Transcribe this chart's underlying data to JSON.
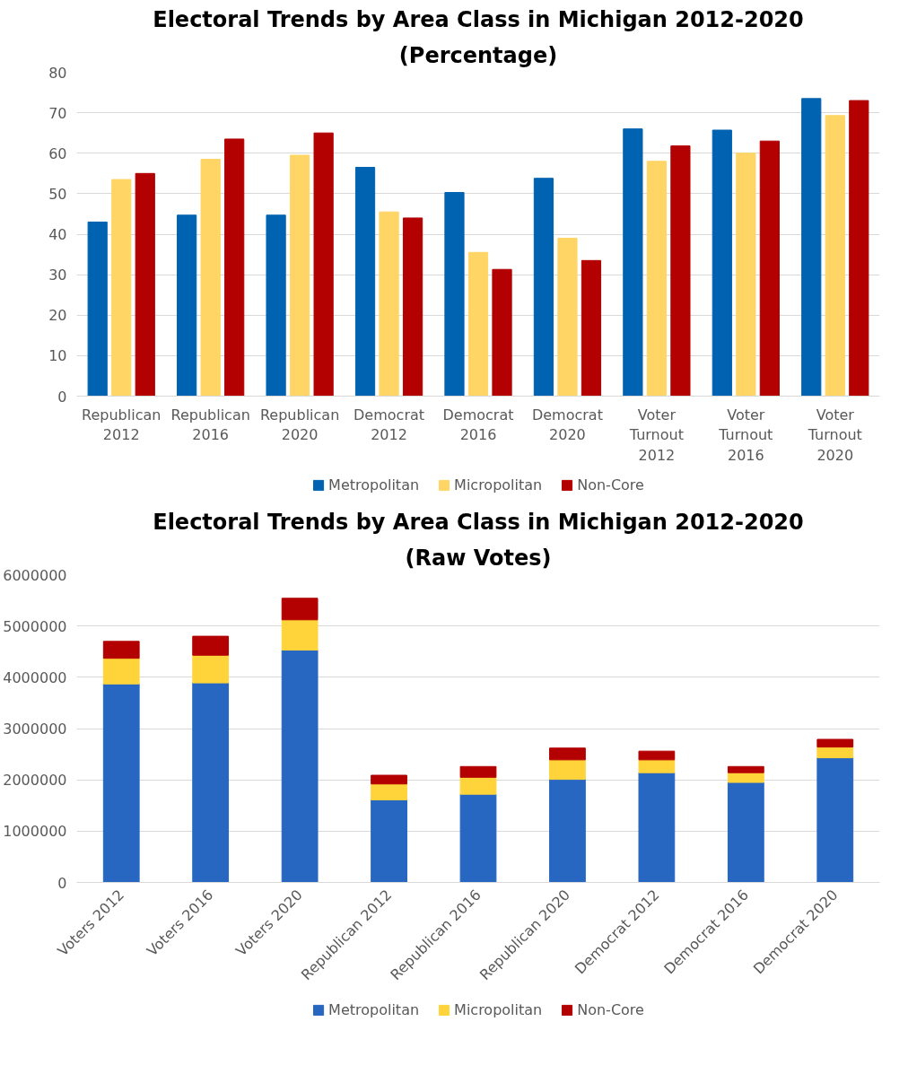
{
  "chart_data": [
    {
      "type": "bar",
      "title": "Electoral Trends by Area Class in Michigan 2012-2020",
      "subtitle": "(Percentage)",
      "categories": [
        "Republican 2012",
        "Republican 2016",
        "Republican 2020",
        "Democrat 2012",
        "Democrat 2016",
        "Democrat 2020",
        "Voter Turnout 2012",
        "Voter Turnout 2016",
        "Voter Turnout 2020"
      ],
      "series": [
        {
          "name": "Metropolitan",
          "color": "#0063b1",
          "values": [
            43,
            44.7,
            44.7,
            56.5,
            50.3,
            53.8,
            66,
            65.7,
            73.5
          ]
        },
        {
          "name": "Micropolitan",
          "color": "#ffd566",
          "values": [
            53.5,
            58.5,
            59.5,
            45.5,
            35.5,
            39,
            58,
            60,
            69.3
          ]
        },
        {
          "name": "Non-Core",
          "color": "#b30000",
          "values": [
            55,
            63.5,
            65,
            44,
            31.3,
            33.5,
            61.8,
            63,
            73
          ]
        }
      ],
      "ylim": [
        0,
        80
      ],
      "yticks": [
        0,
        10,
        20,
        30,
        40,
        50,
        60,
        70,
        80
      ],
      "grid": "y",
      "legend": "bottom"
    },
    {
      "type": "bar",
      "title": "Electoral Trends by Area Class in Michigan 2012-2020",
      "subtitle": "(Raw Votes)",
      "stacked": true,
      "categories": [
        "Voters 2012",
        "Voters 2016",
        "Voters 2020",
        "Republican 2012",
        "Republican 2016",
        "Republican 2020",
        "Democrat 2012",
        "Democrat 2016",
        "Democrat 2020"
      ],
      "series": [
        {
          "name": "Metropolitan",
          "color": "#2767c1",
          "values": [
            3870000,
            3890000,
            4530000,
            1610000,
            1720000,
            2010000,
            2140000,
            1950000,
            2430000
          ]
        },
        {
          "name": "Micropolitan",
          "color": "#ffd43b",
          "values": [
            500000,
            540000,
            590000,
            310000,
            330000,
            380000,
            250000,
            190000,
            210000
          ]
        },
        {
          "name": "Non-Core",
          "color": "#b30000",
          "values": [
            330000,
            370000,
            420000,
            170000,
            210000,
            230000,
            170000,
            120000,
            150000
          ]
        }
      ],
      "ylim": [
        0,
        6000000
      ],
      "yticks": [
        0,
        1000000,
        2000000,
        3000000,
        4000000,
        5000000,
        6000000
      ],
      "grid": "y",
      "legend": "bottom"
    }
  ]
}
